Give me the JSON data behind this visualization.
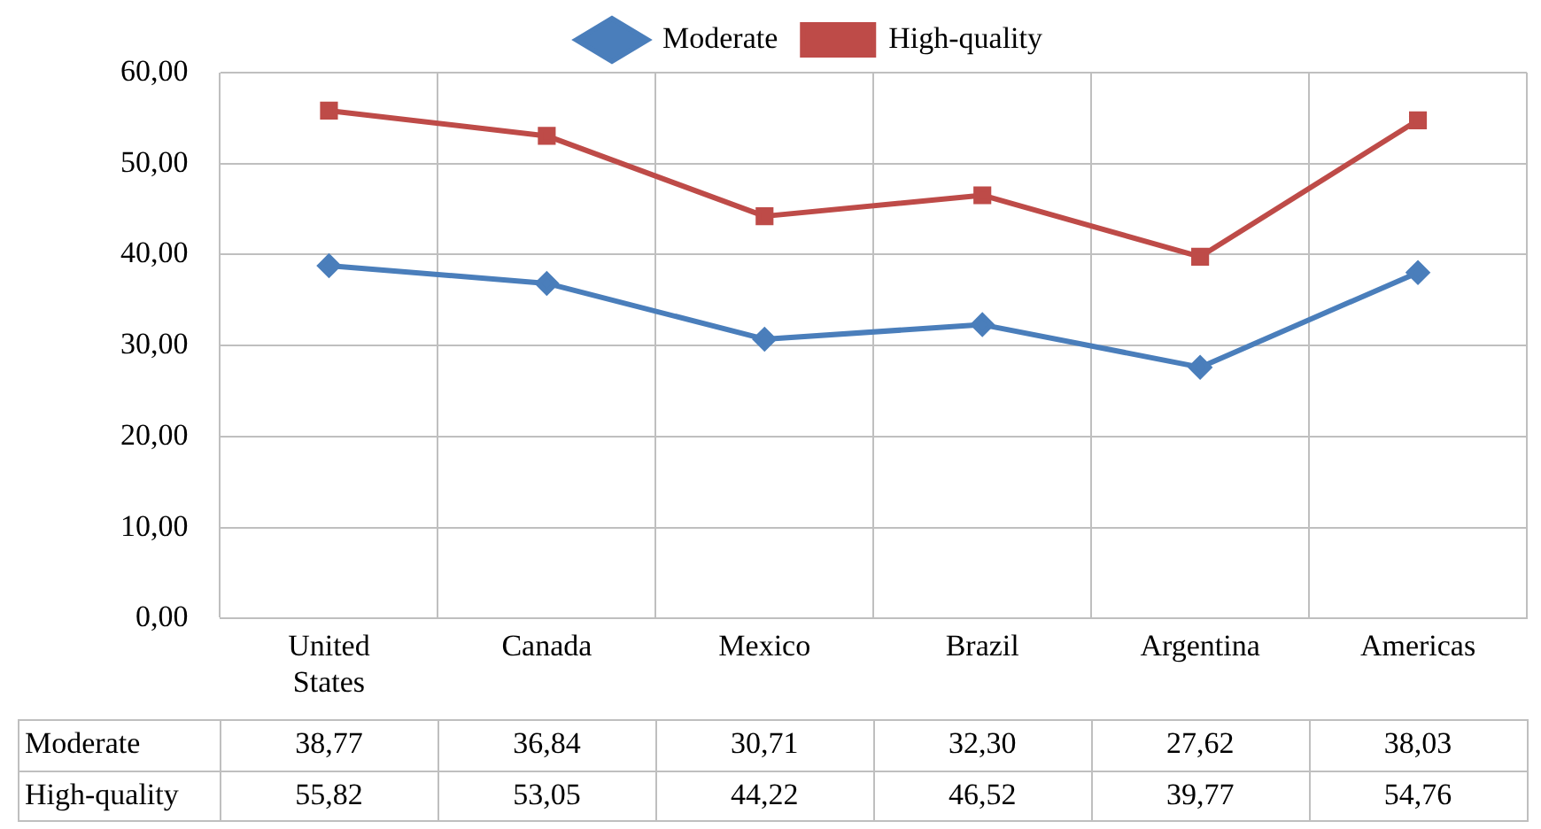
{
  "chart_data": {
    "type": "line",
    "categories": [
      "United States",
      "Canada",
      "Mexico",
      "Brazil",
      "Argentina",
      "Americas"
    ],
    "series": [
      {
        "name": "Moderate",
        "color": "#4a7ebb",
        "marker": "diamond",
        "values": [
          38.77,
          36.84,
          30.71,
          32.3,
          27.62,
          38.03
        ],
        "value_labels": [
          "38,77",
          "36,84",
          "30,71",
          "32,30",
          "27,62",
          "38,03"
        ]
      },
      {
        "name": "High-quality",
        "color": "#be4b48",
        "marker": "square",
        "values": [
          55.82,
          53.05,
          44.22,
          46.52,
          39.77,
          54.76
        ],
        "value_labels": [
          "55,82",
          "53,05",
          "44,22",
          "46,52",
          "39,77",
          "54,76"
        ]
      }
    ],
    "ylim": [
      0,
      60
    ],
    "yticks": [
      {
        "value": 0,
        "label": "0,00"
      },
      {
        "value": 10,
        "label": "10,00"
      },
      {
        "value": 20,
        "label": "20,00"
      },
      {
        "value": 30,
        "label": "30,00"
      },
      {
        "value": 40,
        "label": "40,00"
      },
      {
        "value": 50,
        "label": "50,00"
      },
      {
        "value": 60,
        "label": "60,00"
      }
    ],
    "grid": true,
    "legend": "top",
    "line_style": "solid"
  }
}
